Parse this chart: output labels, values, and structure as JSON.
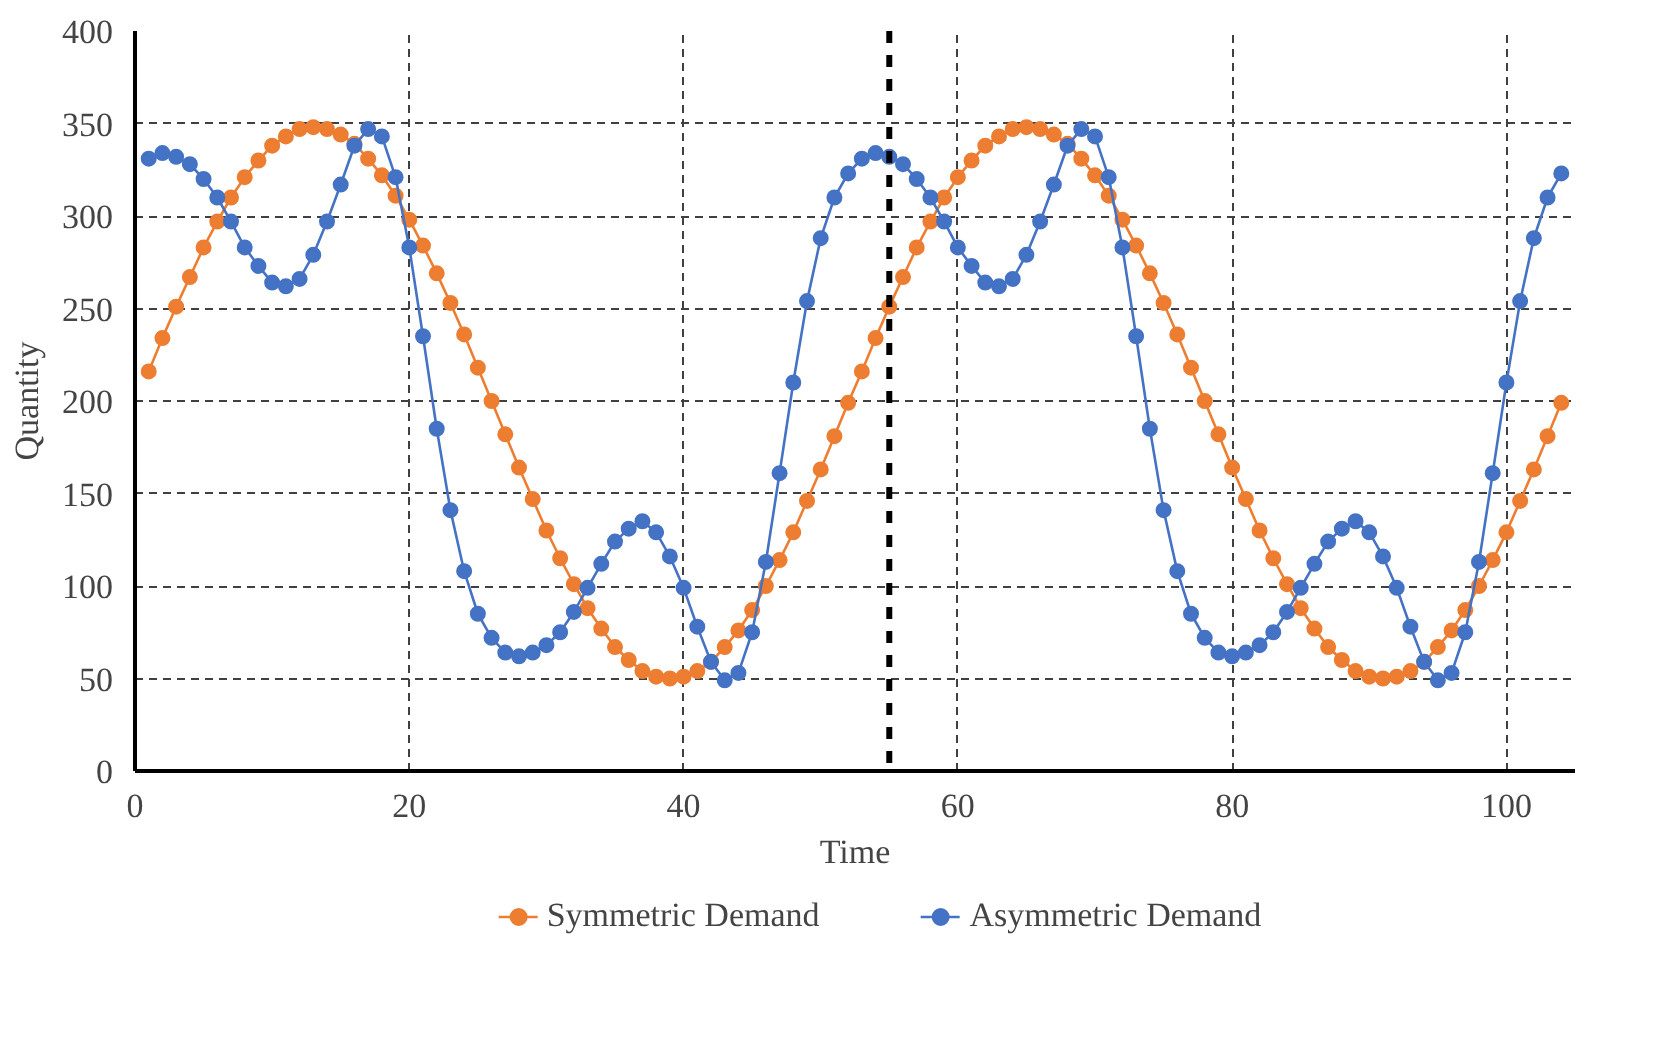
{
  "chart_data": {
    "type": "line",
    "xlabel": "Time",
    "ylabel": "Quantity",
    "x": [
      1,
      2,
      3,
      4,
      5,
      6,
      7,
      8,
      9,
      10,
      11,
      12,
      13,
      14,
      15,
      16,
      17,
      18,
      19,
      20,
      21,
      22,
      23,
      24,
      25,
      26,
      27,
      28,
      29,
      30,
      31,
      32,
      33,
      34,
      35,
      36,
      37,
      38,
      39,
      40,
      41,
      42,
      43,
      44,
      45,
      46,
      47,
      48,
      49,
      50,
      51,
      52,
      53,
      54,
      55,
      56,
      57,
      58,
      59,
      60,
      61,
      62,
      63,
      64,
      65,
      66,
      67,
      68,
      69,
      70,
      71,
      72,
      73,
      74,
      75,
      76,
      77,
      78,
      79,
      80,
      81,
      82,
      83,
      84,
      85,
      86,
      87,
      88,
      89,
      90,
      91,
      92,
      93,
      94,
      95,
      96,
      97,
      98,
      99,
      100,
      101,
      102,
      103,
      104
    ],
    "series": [
      {
        "name": "Symmetric Demand",
        "color": "#ed7d31",
        "values": [
          216,
          234,
          251,
          267,
          283,
          297,
          310,
          321,
          330,
          338,
          343,
          347,
          348,
          347,
          344,
          339,
          331,
          322,
          311,
          298,
          284,
          269,
          253,
          236,
          218,
          200,
          182,
          164,
          147,
          130,
          115,
          101,
          88,
          77,
          67,
          60,
          54,
          51,
          50,
          51,
          54,
          59,
          67,
          76,
          87,
          100,
          114,
          129,
          146,
          163,
          181,
          199,
          216,
          234,
          251,
          267,
          283,
          297,
          310,
          321,
          330,
          338,
          343,
          347,
          348,
          347,
          344,
          339,
          331,
          322,
          311,
          298,
          284,
          269,
          253,
          236,
          218,
          200,
          182,
          164,
          147,
          130,
          115,
          101,
          88,
          77,
          67,
          60,
          54,
          51,
          50,
          51,
          54,
          59,
          67,
          76,
          87,
          100,
          114,
          129,
          146,
          163,
          181,
          199
        ]
      },
      {
        "name": "Asymmetric Demand",
        "color": "#4472c4",
        "values": [
          331,
          334,
          332,
          328,
          320,
          310,
          297,
          283,
          273,
          264,
          262,
          266,
          279,
          297,
          317,
          338,
          347,
          343,
          321,
          283,
          235,
          185,
          141,
          108,
          85,
          72,
          64,
          62,
          64,
          68,
          75,
          86,
          99,
          112,
          124,
          131,
          135,
          129,
          116,
          99,
          78,
          59,
          49,
          53,
          75,
          113,
          161,
          210,
          254,
          288,
          310,
          323,
          331,
          334,
          332,
          328,
          320,
          310,
          297,
          283,
          273,
          264,
          262,
          266,
          279,
          297,
          317,
          338,
          347,
          343,
          321,
          283,
          235,
          185,
          141,
          108,
          85,
          72,
          64,
          62,
          64,
          68,
          75,
          86,
          99,
          112,
          124,
          131,
          135,
          129,
          116,
          99,
          78,
          59,
          49,
          53,
          75,
          113,
          161,
          210,
          254,
          288,
          310,
          323
        ]
      }
    ],
    "xlim": [
      0,
      105
    ],
    "ylim": [
      0,
      400
    ],
    "xticks": [
      0,
      20,
      40,
      60,
      80,
      100
    ],
    "yticks": [
      0,
      50,
      100,
      150,
      200,
      250,
      300,
      350,
      400
    ],
    "ref_lines": [
      {
        "axis": "x",
        "value": 55,
        "color": "#000000",
        "line_style": "dashed"
      }
    ],
    "grid": true,
    "legend": "bottom",
    "marker": "circle",
    "line_style": "solid"
  }
}
